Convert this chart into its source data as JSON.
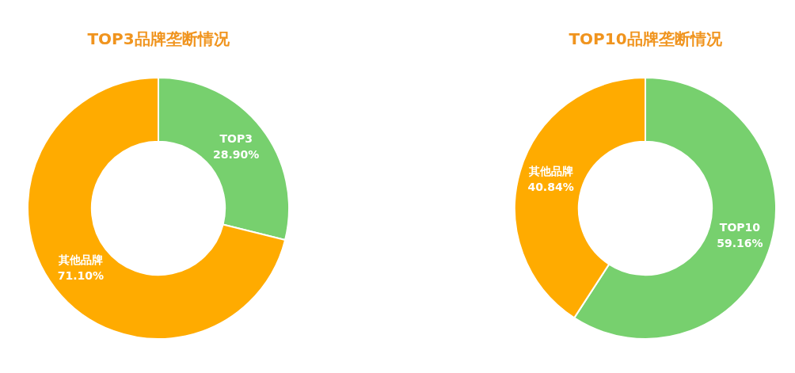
{
  "chart_data": [
    {
      "type": "donut",
      "title": "TOP3品牌垄断情况",
      "categories": [
        "TOP3",
        "其他品牌"
      ],
      "values": [
        28.9,
        71.1
      ],
      "colors": [
        "#77d06e",
        "#ffab00"
      ],
      "value_labels": [
        "28.90%",
        "71.10%"
      ]
    },
    {
      "type": "donut",
      "title": "TOP10品牌垄断情况",
      "categories": [
        "TOP10",
        "其他品牌"
      ],
      "values": [
        59.16,
        40.84
      ],
      "colors": [
        "#77d06e",
        "#ffab00"
      ],
      "value_labels": [
        "59.16%",
        "40.84%"
      ]
    }
  ]
}
